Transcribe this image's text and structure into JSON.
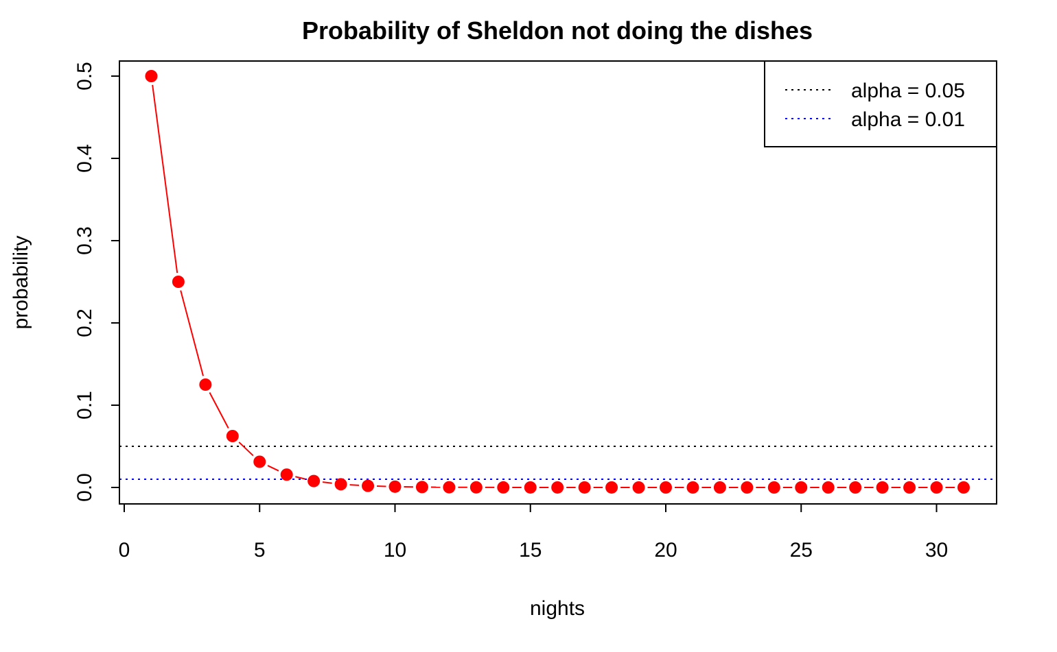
{
  "chart_data": {
    "type": "line",
    "title": "Probability of Sheldon not doing the dishes",
    "xlabel": "nights",
    "ylabel": "probability",
    "xlim": [
      0,
      32
    ],
    "ylim": [
      0,
      0.5
    ],
    "x_ticks": [
      0,
      5,
      10,
      15,
      20,
      25,
      30
    ],
    "x_tick_labels": [
      "0",
      "5",
      "10",
      "15",
      "20",
      "25",
      "30"
    ],
    "y_ticks": [
      0.0,
      0.1,
      0.2,
      0.3,
      0.4,
      0.5
    ],
    "y_tick_labels": [
      "0.0",
      "0.1",
      "0.2",
      "0.3",
      "0.4",
      "0.5"
    ],
    "grid": false,
    "series": [
      {
        "color": "#ff0000",
        "x": [
          1,
          2,
          3,
          4,
          5,
          6,
          7,
          8,
          9,
          10,
          11,
          12,
          13,
          14,
          15,
          16,
          17,
          18,
          19,
          20,
          21,
          22,
          23,
          24,
          25,
          26,
          27,
          28,
          29,
          30,
          31
        ],
        "values": [
          0.5,
          0.25,
          0.125,
          0.0625,
          0.03125,
          0.015625,
          0.0078125,
          0.00390625,
          0.001953125,
          0.0009765625,
          0.00048828125,
          0.000244140625,
          0.0001220703125,
          6.103515625e-05,
          3.0517578125e-05,
          1.52587890625e-05,
          7.62939453125e-06,
          3.814697265625e-06,
          1.9073486328125e-06,
          9.5367431640625e-07,
          4.76837158203125e-07,
          2.384185791015625e-07,
          1.1920928955078125e-07,
          5.960464477539063e-08,
          2.9802322387695312e-08,
          1.4901161193847656e-08,
          7.450580596923828e-09,
          3.725290298461914e-09,
          1.862645149230957e-09,
          9.313225746154785e-10,
          4.656612873077393e-10
        ]
      }
    ],
    "reference_lines": [
      {
        "label": "alpha = 0.05",
        "y": 0.05,
        "color": "#000000",
        "style": "dotted"
      },
      {
        "label": "alpha = 0.01",
        "y": 0.01,
        "color": "#0000ff",
        "style": "dotted"
      }
    ],
    "legend": {
      "position": "top-right",
      "entries": [
        "alpha = 0.05",
        "alpha = 0.01"
      ]
    }
  }
}
